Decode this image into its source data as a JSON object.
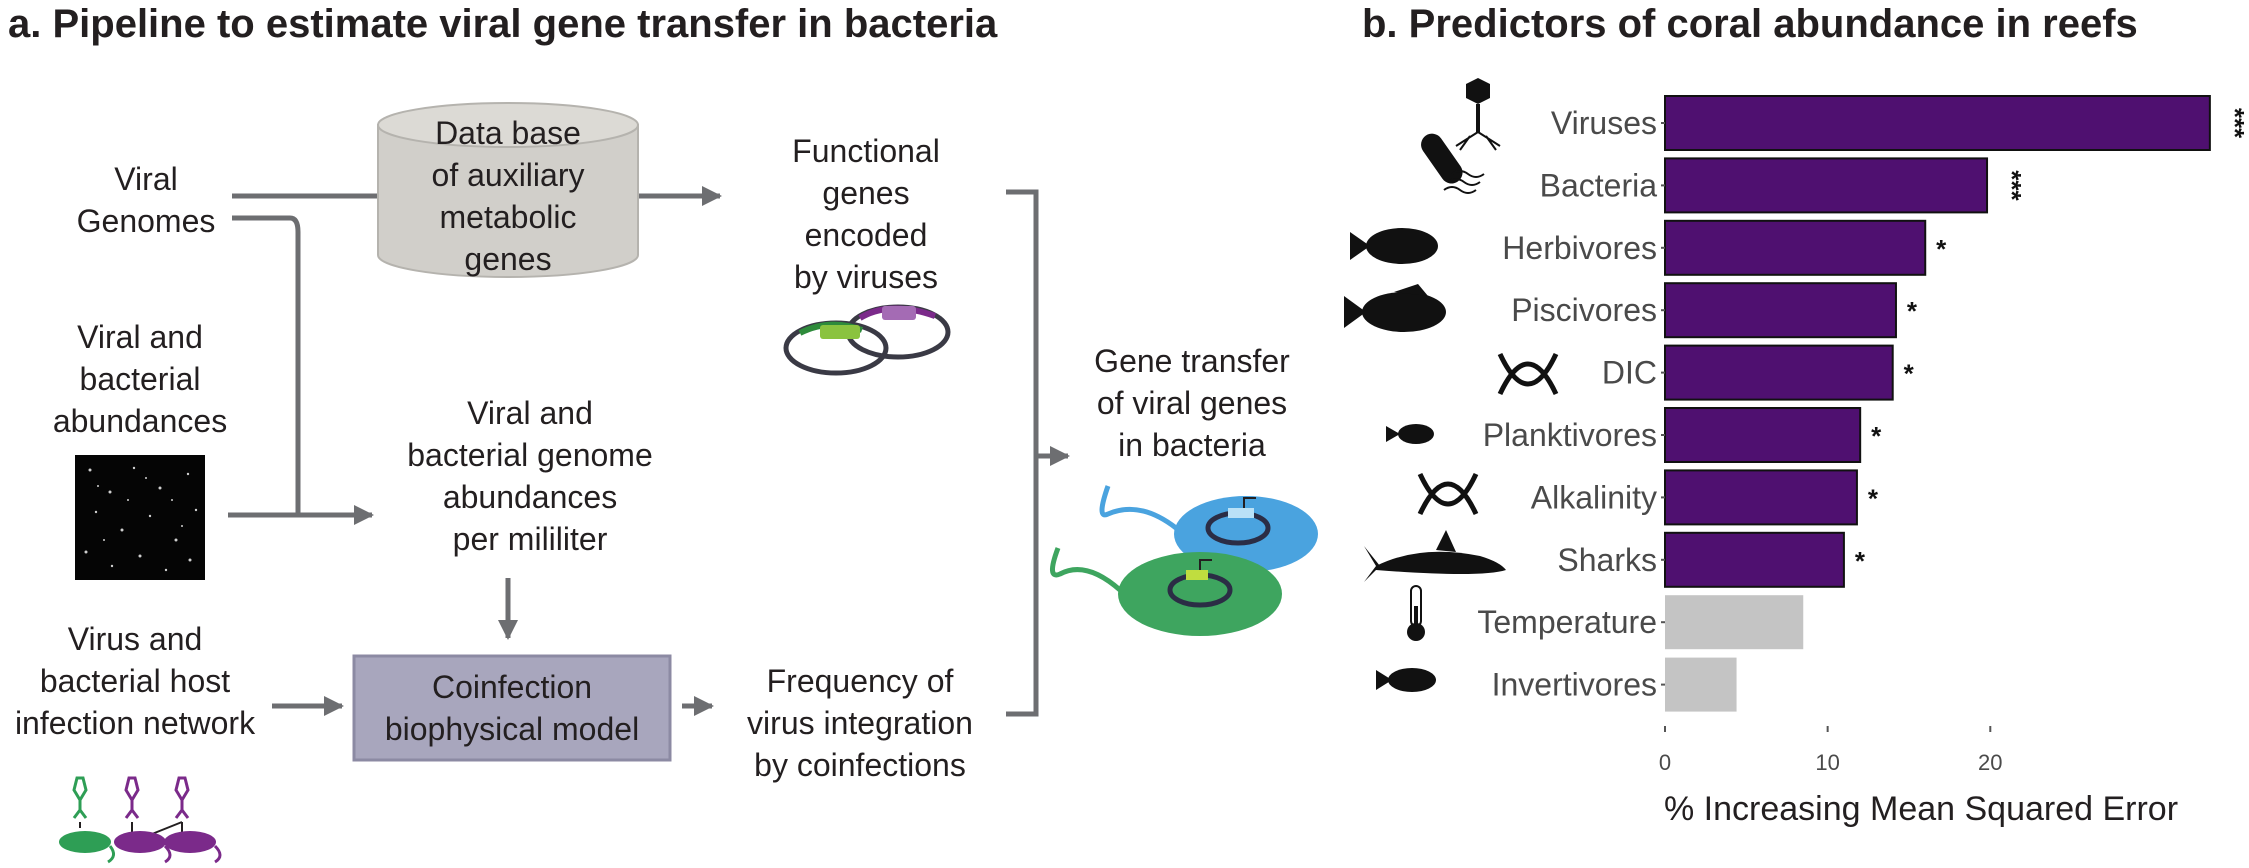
{
  "panel_a": {
    "title": "a. Pipeline to estimate viral gene transfer in bacteria",
    "viral_genomes": "Viral\nGenomes",
    "database": "Data base\nof auxiliary\nmetabolic\ngenes",
    "functional_genes": "Functional\ngenes\nencoded\nby viruses",
    "abundances": "Viral and\nbacterial\nabundances",
    "genome_abundances": "Viral and\nbacterial genome\nabundances\nper mililiter",
    "infection_network": "Virus and\nbacterial host\ninfection network",
    "model": "Coinfection\nbiophysical model",
    "frequency": "Frequency of\nvirus integration\nby coinfections",
    "gene_transfer": "Gene transfer\nof viral genes\nin bacteria"
  },
  "panel_b": {
    "title": "b. Predictors of coral abundance in reefs"
  },
  "colors": {
    "arrow": "#6d6e71",
    "database_fill": "#d1cfca",
    "model_fill": "#a8a6bd",
    "bar_significant": "#4f1070",
    "bar_nonsignificant": "#c4c4c4"
  },
  "chart_data": {
    "type": "bar",
    "orientation": "horizontal",
    "categories": [
      "Viruses",
      "Bacteria",
      "Herbivores",
      "Piscivores",
      "DIC",
      "Planktivores",
      "Alkalinity",
      "Sharks",
      "Temperature",
      "Invertivores"
    ],
    "values": [
      33.5,
      19.8,
      16,
      14.2,
      14,
      12,
      11.8,
      11,
      8.5,
      4.4
    ],
    "significance": [
      "***",
      "***",
      "*",
      "*",
      "*",
      "*",
      "*",
      "*",
      "",
      ""
    ],
    "icons": [
      "virus-icon",
      "bacterium-icon",
      "herbivore-fish-icon",
      "piscivore-fish-icon",
      "dic-helix-icon",
      "planktivore-fish-icon",
      "alkalinity-helix-icon",
      "shark-icon",
      "thermometer-icon",
      "invertivore-fish-icon"
    ],
    "xlabel": "% Increasing Mean Squared Error",
    "xticks": [
      0,
      10,
      20
    ],
    "xlim": [
      0,
      34
    ],
    "title": "",
    "grid": false
  }
}
